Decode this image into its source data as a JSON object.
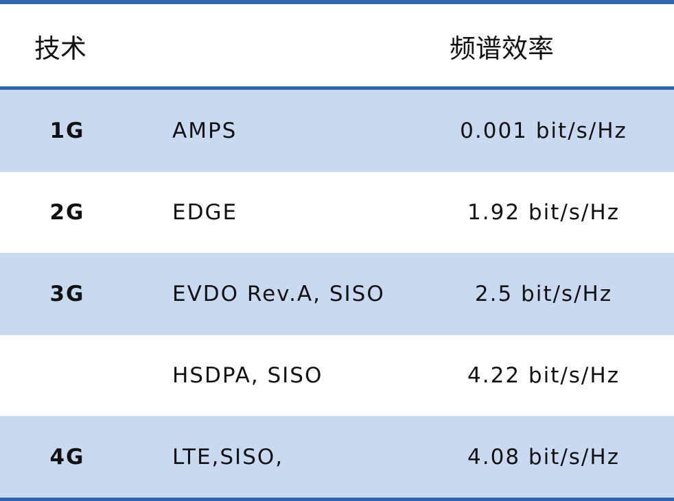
{
  "header": {
    "technology": "技术",
    "efficiency": "频谱效率"
  },
  "table": {
    "rows": [
      {
        "generation": "1G",
        "technology": "AMPS",
        "efficiency": "0.001 bit/s/Hz"
      },
      {
        "generation": "2G",
        "technology": "EDGE",
        "efficiency": "1.92 bit/s/Hz"
      },
      {
        "generation": "3G",
        "technology": "EVDO Rev.A, SISO",
        "efficiency": "2.5 bit/s/Hz"
      },
      {
        "technology": "HSDPA, SISO",
        "efficiency": "4.22 bit/s/Hz"
      },
      {
        "generation": "4G",
        "technology": "LTE,SISO,",
        "efficiency": "4.08 bit/s/Hz"
      }
    ]
  }
}
